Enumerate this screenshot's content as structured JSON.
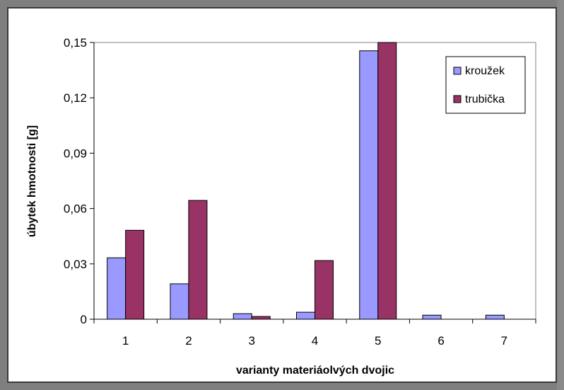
{
  "chart_data": {
    "type": "bar",
    "categories": [
      "1",
      "2",
      "3",
      "4",
      "5",
      "6",
      "7"
    ],
    "series": [
      {
        "name": "kroužek",
        "values": [
          0.0333,
          0.0192,
          0.003,
          0.0038,
          0.1455,
          0.0022,
          0.0022
        ],
        "color": "#9999ff"
      },
      {
        "name": "trubička",
        "values": [
          0.0482,
          0.0644,
          0.0015,
          0.0318,
          0.152,
          0,
          0
        ],
        "color": "#993366"
      }
    ],
    "title": "",
    "xlabel": "varianty materiáolvých dvojic",
    "ylabel": "úbytek hmotnosti [g]",
    "ylim": [
      0,
      0.15
    ],
    "yticks": [
      "0",
      "0,03",
      "0,06",
      "0,09",
      "0,12",
      "0,15"
    ],
    "grid": false,
    "legend_position": "top-right"
  }
}
